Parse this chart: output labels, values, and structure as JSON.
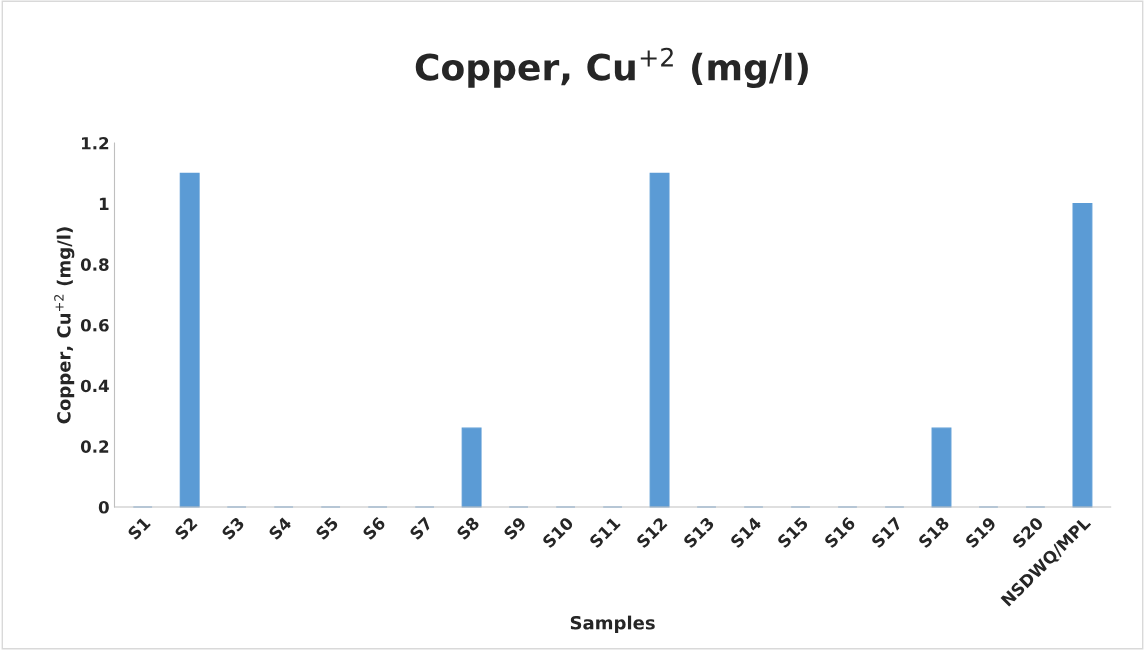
{
  "chart_data": {
    "type": "bar",
    "title": "Copper, Cu$^{+2}$ (mg/l)",
    "xlabel": "Samples",
    "ylabel": "Copper, Cu$^{+2}$ (mg/l)",
    "categories": [
      "S1",
      "S2",
      "S3",
      "S4",
      "S5",
      "S6",
      "S7",
      "S8",
      "S9",
      "S10",
      "S11",
      "S12",
      "S13",
      "S14",
      "S15",
      "S16",
      "S17",
      "S18",
      "S19",
      "S20",
      "NSDWQ/MPL"
    ],
    "values": [
      0,
      1.1,
      0,
      0,
      0,
      0,
      0,
      0.26,
      0,
      0,
      0,
      1.1,
      0,
      0,
      0,
      0,
      0,
      0.26,
      0,
      0,
      1.0
    ],
    "color": "#5b9bd5",
    "ylim": [
      0,
      1.2
    ],
    "yticks": [
      0,
      0.2,
      0.4,
      0.6,
      0.8,
      1,
      1.2
    ],
    "grid": false,
    "legend": false
  }
}
